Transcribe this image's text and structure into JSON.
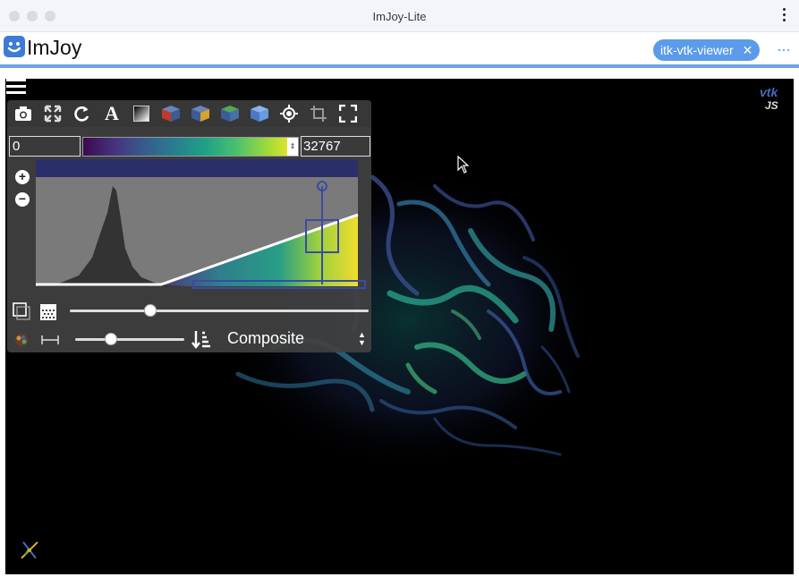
{
  "window": {
    "title": "ImJoy-Lite"
  },
  "app": {
    "name": "ImJoy",
    "plugin_tab": "itk-vtk-viewer",
    "close_glyph": "✕",
    "more_glyph": "···"
  },
  "viewer": {
    "toolbar_icons": [
      "camera-icon",
      "fullscreen-arrows-icon",
      "rotate-icon",
      "annotation-text-icon",
      "gradient-icon",
      "volume-red-icon",
      "volume-yellow-icon",
      "volume-green-icon",
      "volume-blue-icon",
      "target-icon",
      "crop-icon",
      "expand-icon"
    ],
    "annotation_glyph": "A",
    "range_min": "0",
    "range_max": "32767",
    "colormap": "Viridis",
    "colormap_stops": [
      "#3b0a4e",
      "#46327e",
      "#365c8d",
      "#277f8e",
      "#1fa187",
      "#4ac16d",
      "#a0da39",
      "#fde725"
    ],
    "zoom_in": "+",
    "zoom_out": "−",
    "opacity_slider": 0.27,
    "sample_slider": 0.33,
    "blend_mode": "Composite",
    "blend_caret": "▲▼",
    "histogram_peak_fraction": 0.3,
    "vtk_logo_text": "vtk JS"
  },
  "colors": {
    "accent": "#5b9bea",
    "panel": "#414141",
    "track": "#2a2f6a"
  }
}
